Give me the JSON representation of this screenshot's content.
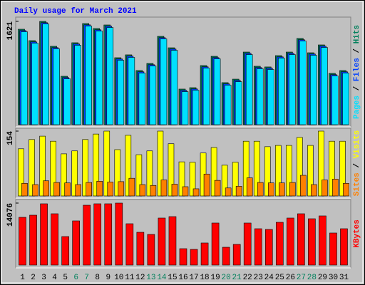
{
  "chart_data": [
    {
      "type": "bar",
      "title": "Daily usage for March 2021",
      "ylim": [
        0,
        1621
      ],
      "yticks": [
        1621
      ],
      "legend_separator": " / ",
      "series": [
        {
          "name": "Hits",
          "color": "#00805c",
          "values": [
            1498,
            1319,
            1621,
            1230,
            760,
            1286,
            1587,
            1509,
            1565,
            1051,
            1096,
            850,
            961,
            1386,
            1207,
            559,
            581,
            928,
            1073,
            660,
            715,
            1140,
            917,
            906,
            1084,
            1140,
            1353,
            1129,
            1252,
            805,
            850
          ]
        },
        {
          "name": "Files",
          "color": "#0040ff",
          "values": [
            1478,
            1299,
            1601,
            1210,
            740,
            1266,
            1567,
            1489,
            1545,
            1031,
            1076,
            830,
            941,
            1366,
            1187,
            539,
            561,
            908,
            1053,
            640,
            695,
            1120,
            897,
            886,
            1064,
            1120,
            1333,
            1109,
            1232,
            785,
            830
          ]
        },
        {
          "name": "Pages",
          "color": "#00e0ff",
          "values": [
            1458,
            1279,
            1581,
            1190,
            720,
            1246,
            1547,
            1469,
            1525,
            1011,
            1056,
            810,
            921,
            1346,
            1167,
            519,
            541,
            888,
            1033,
            620,
            675,
            1100,
            877,
            866,
            1044,
            1100,
            1313,
            1089,
            1212,
            765,
            810
          ]
        }
      ]
    },
    {
      "type": "bar",
      "ylim": [
        0,
        154
      ],
      "yticks": [
        154
      ],
      "legend_separator": " / ",
      "series": [
        {
          "name": "Visits",
          "color": "#ffff00",
          "values": [
            112,
            134,
            142,
            130,
            100,
            107,
            134,
            147,
            154,
            110,
            144,
            98,
            107,
            154,
            124,
            81,
            80,
            102,
            115,
            73,
            80,
            130,
            130,
            117,
            120,
            120,
            139,
            120,
            154,
            130,
            130
          ]
        },
        {
          "name": "Sites",
          "color": "#ff8000",
          "values": [
            30,
            27,
            36,
            32,
            31,
            27,
            32,
            35,
            33,
            34,
            42,
            27,
            25,
            38,
            28,
            22,
            17,
            52,
            37,
            19,
            23,
            43,
            32,
            31,
            31,
            32,
            49,
            27,
            38,
            40,
            30
          ]
        }
      ]
    },
    {
      "type": "bar",
      "ylim": [
        0,
        14076
      ],
      "yticks": [
        14076
      ],
      "categories": [
        "1",
        "2",
        "3",
        "4",
        "5",
        "6",
        "7",
        "8",
        "9",
        "10",
        "11",
        "12",
        "13",
        "14",
        "15",
        "16",
        "17",
        "18",
        "19",
        "20",
        "21",
        "22",
        "23",
        "24",
        "25",
        "26",
        "27",
        "28",
        "29",
        "30",
        "31"
      ],
      "category_colors": [
        "#000000",
        "#000000",
        "#000000",
        "#000000",
        "#000000",
        "#00805c",
        "#00805c",
        "#000000",
        "#000000",
        "#000000",
        "#000000",
        "#000000",
        "#00805c",
        "#00805c",
        "#000000",
        "#000000",
        "#000000",
        "#000000",
        "#000000",
        "#00805c",
        "#00805c",
        "#000000",
        "#000000",
        "#000000",
        "#000000",
        "#000000",
        "#00805c",
        "#00805c",
        "#000000",
        "#000000",
        "#000000"
      ],
      "series": [
        {
          "name": "KBytes",
          "color": "#ff0000",
          "values": [
            10840,
            11326,
            13914,
            11649,
            6472,
            10031,
            13590,
            13914,
            13914,
            14076,
            9384,
            7442,
            6957,
            10678,
            11002,
            3721,
            3559,
            5016,
            9546,
            4045,
            4692,
            9546,
            8251,
            8090,
            9708,
            10678,
            11649,
            10516,
            11164,
            7281,
            8251
          ]
        }
      ]
    }
  ]
}
